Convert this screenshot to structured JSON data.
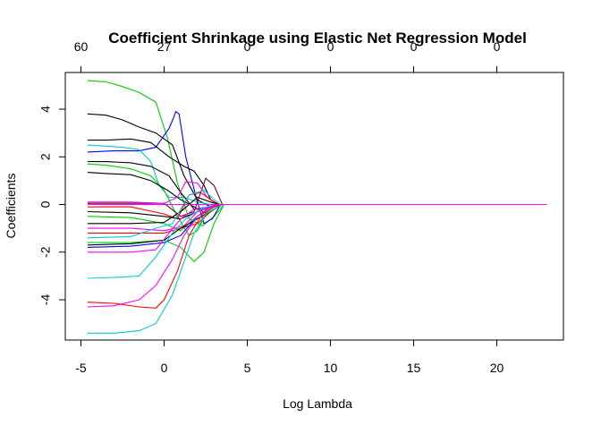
{
  "chart_data": {
    "type": "line",
    "title": "Coefficient Shrinkage using Elastic Net Regression Model",
    "xlabel": "Log Lambda",
    "ylabel": "Coefficients",
    "xlim": [
      -4.6,
      23.0
    ],
    "ylim": [
      -5.5,
      5.5
    ],
    "x_ticks": [
      -5,
      0,
      5,
      10,
      15,
      20
    ],
    "x_tick_labels": [
      "-5",
      "0",
      "5",
      "10",
      "15",
      "20"
    ],
    "y_ticks": [
      -4,
      -2,
      0,
      2,
      4
    ],
    "y_tick_labels": [
      "-4",
      "-2",
      "0",
      "2",
      "4"
    ],
    "top_axis": {
      "ticks": [
        -5,
        0,
        5,
        10,
        15,
        20
      ],
      "labels": [
        "60",
        "27",
        "0",
        "0",
        "0",
        "0"
      ]
    },
    "grid": false,
    "legend": "none",
    "series": [
      {
        "color": "#00cc00",
        "values": [
          [
            -4.6,
            5.2
          ],
          [
            -3.5,
            5.15
          ],
          [
            -2.5,
            4.95
          ],
          [
            -1.5,
            4.7
          ],
          [
            -0.5,
            4.3
          ],
          [
            0.2,
            2.8
          ],
          [
            0.8,
            0.9
          ],
          [
            1.5,
            -0.6
          ],
          [
            2.3,
            -0.9
          ],
          [
            3.0,
            -0.5
          ],
          [
            3.6,
            0
          ],
          [
            23,
            0
          ]
        ]
      },
      {
        "color": "#0000ff",
        "values": [
          [
            -4.6,
            2.2
          ],
          [
            -3,
            2.25
          ],
          [
            -1.5,
            2.25
          ],
          [
            -0.5,
            2.4
          ],
          [
            0.3,
            3.2
          ],
          [
            0.6,
            3.7
          ],
          [
            0.7,
            3.9
          ],
          [
            0.9,
            3.8
          ],
          [
            1.3,
            2.0
          ],
          [
            2.0,
            0.1
          ],
          [
            2.4,
            -0.8
          ],
          [
            2.9,
            -0.6
          ],
          [
            3.4,
            0
          ],
          [
            23,
            0
          ]
        ]
      },
      {
        "color": "#000000",
        "values": [
          [
            -4.6,
            3.8
          ],
          [
            -3.5,
            3.75
          ],
          [
            -2.5,
            3.55
          ],
          [
            -1.5,
            3.25
          ],
          [
            -0.5,
            3.0
          ],
          [
            0.5,
            2.5
          ],
          [
            1.2,
            1.2
          ],
          [
            2.0,
            0.2
          ],
          [
            2.8,
            -0.1
          ],
          [
            3.4,
            0
          ],
          [
            23,
            0
          ]
        ]
      },
      {
        "color": "#00cccc",
        "values": [
          [
            -4.6,
            2.5
          ],
          [
            -3.5,
            2.45
          ],
          [
            -2.5,
            2.4
          ],
          [
            -1.5,
            2.3
          ],
          [
            -0.8,
            1.8
          ],
          [
            -0.3,
            0.8
          ],
          [
            0.3,
            0.3
          ],
          [
            1.2,
            0.3
          ],
          [
            2.0,
            0.1
          ],
          [
            2.8,
            0
          ],
          [
            23,
            0
          ]
        ]
      },
      {
        "color": "#000000",
        "values": [
          [
            -4.6,
            2.7
          ],
          [
            -3.5,
            2.7
          ],
          [
            -2.0,
            2.75
          ],
          [
            -0.8,
            2.6
          ],
          [
            0.3,
            2.0
          ],
          [
            1.2,
            1.6
          ],
          [
            1.8,
            1.4
          ],
          [
            2.4,
            0.8
          ],
          [
            2.8,
            0.2
          ],
          [
            3.2,
            0
          ],
          [
            23,
            0
          ]
        ]
      },
      {
        "color": "#000000",
        "values": [
          [
            -4.6,
            1.8
          ],
          [
            -3.5,
            1.8
          ],
          [
            -2.0,
            1.75
          ],
          [
            -0.8,
            1.6
          ],
          [
            0.3,
            1.2
          ],
          [
            1.0,
            0.5
          ],
          [
            1.8,
            -0.2
          ],
          [
            2.5,
            -0.2
          ],
          [
            3.0,
            0
          ],
          [
            23,
            0
          ]
        ]
      },
      {
        "color": "#00cc00",
        "values": [
          [
            -4.6,
            1.7
          ],
          [
            -3.5,
            1.65
          ],
          [
            -2.0,
            1.5
          ],
          [
            -0.8,
            1.2
          ],
          [
            0.0,
            0.6
          ],
          [
            0.8,
            -0.5
          ],
          [
            1.5,
            -1.3
          ],
          [
            2.0,
            -1.1
          ],
          [
            2.6,
            -0.3
          ],
          [
            3.2,
            0
          ],
          [
            23,
            0
          ]
        ]
      },
      {
        "color": "#000000",
        "values": [
          [
            -4.6,
            1.35
          ],
          [
            -3.5,
            1.3
          ],
          [
            -2.0,
            1.25
          ],
          [
            -0.8,
            1.0
          ],
          [
            0.2,
            0.6
          ],
          [
            1.0,
            0.2
          ],
          [
            1.8,
            -0.1
          ],
          [
            2.6,
            -0.4
          ],
          [
            3.4,
            0
          ],
          [
            23,
            0
          ]
        ]
      },
      {
        "color": "#660033",
        "values": [
          [
            -4.6,
            0.05
          ],
          [
            0.0,
            0.05
          ],
          [
            1.0,
            -0.5
          ],
          [
            1.8,
            -0.3
          ],
          [
            2.5,
            1.1
          ],
          [
            3.0,
            0.8
          ],
          [
            3.5,
            0
          ],
          [
            23,
            0
          ]
        ]
      },
      {
        "color": "#ff00ff",
        "values": [
          [
            -4.6,
            0.1
          ],
          [
            -2.0,
            0.1
          ],
          [
            0.0,
            0.05
          ],
          [
            0.8,
            0.3
          ],
          [
            1.3,
            0.95
          ],
          [
            2.0,
            0.9
          ],
          [
            2.6,
            0.3
          ],
          [
            3.2,
            0
          ],
          [
            23,
            0
          ]
        ]
      },
      {
        "color": "#ff0000",
        "values": [
          [
            -4.6,
            -0.1
          ],
          [
            -2.0,
            -0.1
          ],
          [
            0.0,
            -0.4
          ],
          [
            0.8,
            -0.6
          ],
          [
            1.5,
            0.4
          ],
          [
            2.2,
            0.5
          ],
          [
            2.8,
            0.2
          ],
          [
            3.3,
            0
          ],
          [
            23,
            0
          ]
        ]
      },
      {
        "color": "#000000",
        "values": [
          [
            -4.6,
            -0.3
          ],
          [
            -2.0,
            -0.35
          ],
          [
            0.0,
            -0.5
          ],
          [
            1.0,
            -0.6
          ],
          [
            2.0,
            -0.3
          ],
          [
            2.8,
            -0.1
          ],
          [
            3.3,
            0
          ],
          [
            23,
            0
          ]
        ]
      },
      {
        "color": "#00cc00",
        "values": [
          [
            -4.6,
            -0.5
          ],
          [
            -2.0,
            -0.55
          ],
          [
            0.0,
            -0.8
          ],
          [
            1.0,
            -1.1
          ],
          [
            1.8,
            -0.6
          ],
          [
            2.6,
            -0.2
          ],
          [
            3.2,
            0
          ],
          [
            23,
            0
          ]
        ]
      },
      {
        "color": "#000000",
        "values": [
          [
            -4.6,
            -0.8
          ],
          [
            -2.0,
            -0.8
          ],
          [
            0.0,
            -0.75
          ],
          [
            1.0,
            -0.3
          ],
          [
            2.0,
            0.3
          ],
          [
            2.8,
            0.1
          ],
          [
            3.3,
            0
          ],
          [
            23,
            0
          ]
        ]
      },
      {
        "color": "#ff00ff",
        "values": [
          [
            -4.6,
            -1.0
          ],
          [
            -2.0,
            -1.0
          ],
          [
            0.0,
            -1.1
          ],
          [
            1.2,
            -0.9
          ],
          [
            2.0,
            -0.3
          ],
          [
            2.8,
            -0.1
          ],
          [
            3.3,
            0
          ],
          [
            23,
            0
          ]
        ]
      },
      {
        "color": "#ff0000",
        "values": [
          [
            -4.6,
            -1.2
          ],
          [
            -2.0,
            -1.2
          ],
          [
            0.0,
            -1.2
          ],
          [
            1.0,
            -1.0
          ],
          [
            2.0,
            -0.8
          ],
          [
            2.8,
            -0.3
          ],
          [
            3.4,
            0
          ],
          [
            23,
            0
          ]
        ]
      },
      {
        "color": "#00cccc",
        "values": [
          [
            -4.6,
            -1.4
          ],
          [
            -2.0,
            -1.35
          ],
          [
            -0.5,
            -1.0
          ],
          [
            0.5,
            -0.8
          ],
          [
            1.5,
            0.4
          ],
          [
            2.4,
            0.6
          ],
          [
            3.0,
            0.2
          ],
          [
            3.4,
            0
          ],
          [
            23,
            0
          ]
        ]
      },
      {
        "color": "#00cc00",
        "values": [
          [
            -4.6,
            -1.6
          ],
          [
            -2.0,
            -1.6
          ],
          [
            0.0,
            -1.5
          ],
          [
            1.0,
            -1.8
          ],
          [
            1.8,
            -2.4
          ],
          [
            2.4,
            -2.0
          ],
          [
            3.0,
            -0.8
          ],
          [
            3.6,
            0
          ],
          [
            23,
            0
          ]
        ]
      },
      {
        "color": "#000000",
        "values": [
          [
            -4.6,
            -1.7
          ],
          [
            -2.0,
            -1.65
          ],
          [
            0.0,
            -1.5
          ],
          [
            1.0,
            -1.0
          ],
          [
            2.0,
            -0.6
          ],
          [
            3.0,
            -0.2
          ],
          [
            3.5,
            0
          ],
          [
            23,
            0
          ]
        ]
      },
      {
        "color": "#0000ff",
        "values": [
          [
            -4.6,
            -1.8
          ],
          [
            -2.0,
            -1.75
          ],
          [
            0.0,
            -1.6
          ],
          [
            1.0,
            -1.3
          ],
          [
            2.0,
            -0.5
          ],
          [
            2.8,
            -0.1
          ],
          [
            3.4,
            0
          ],
          [
            23,
            0
          ]
        ]
      },
      {
        "color": "#ff00ff",
        "values": [
          [
            -4.6,
            -2.0
          ],
          [
            -2.0,
            -2.0
          ],
          [
            -0.5,
            -1.9
          ],
          [
            0.3,
            -1.2
          ],
          [
            1.0,
            -0.6
          ],
          [
            1.8,
            -0.2
          ],
          [
            2.6,
            -0.1
          ],
          [
            3.3,
            0
          ],
          [
            23,
            0
          ]
        ]
      },
      {
        "color": "#00cccc",
        "values": [
          [
            -4.6,
            -3.1
          ],
          [
            -2.5,
            -3.05
          ],
          [
            -1.5,
            -3.0
          ],
          [
            -0.5,
            -2.2
          ],
          [
            0.5,
            -1.2
          ],
          [
            1.3,
            -0.6
          ],
          [
            2.2,
            -0.2
          ],
          [
            3.0,
            0
          ],
          [
            23,
            0
          ]
        ]
      },
      {
        "color": "#ff00ff",
        "values": [
          [
            -4.6,
            -4.3
          ],
          [
            -3.0,
            -4.25
          ],
          [
            -1.5,
            -4.0
          ],
          [
            -0.5,
            -3.4
          ],
          [
            0.5,
            -2.3
          ],
          [
            1.2,
            -1.3
          ],
          [
            2.0,
            -0.5
          ],
          [
            2.8,
            -0.1
          ],
          [
            3.4,
            0
          ],
          [
            23,
            0
          ]
        ]
      },
      {
        "color": "#ff0000",
        "values": [
          [
            -4.6,
            -4.1
          ],
          [
            -3.0,
            -4.15
          ],
          [
            -1.5,
            -4.3
          ],
          [
            -0.5,
            -4.35
          ],
          [
            0.0,
            -4.0
          ],
          [
            0.8,
            -2.8
          ],
          [
            1.5,
            -1.3
          ],
          [
            2.3,
            -0.4
          ],
          [
            3.0,
            -0.1
          ],
          [
            3.5,
            0
          ],
          [
            23,
            0
          ]
        ]
      },
      {
        "color": "#00cccc",
        "values": [
          [
            -4.6,
            -5.4
          ],
          [
            -3.0,
            -5.4
          ],
          [
            -1.5,
            -5.3
          ],
          [
            -0.5,
            -5.0
          ],
          [
            0.5,
            -3.8
          ],
          [
            1.2,
            -2.4
          ],
          [
            1.8,
            -1.2
          ],
          [
            2.5,
            -0.4
          ],
          [
            3.2,
            -0.1
          ],
          [
            3.6,
            0
          ],
          [
            23,
            0
          ]
        ]
      },
      {
        "color": "#ff00ff",
        "values": [
          [
            -4.6,
            0
          ],
          [
            23,
            0
          ]
        ]
      }
    ]
  }
}
